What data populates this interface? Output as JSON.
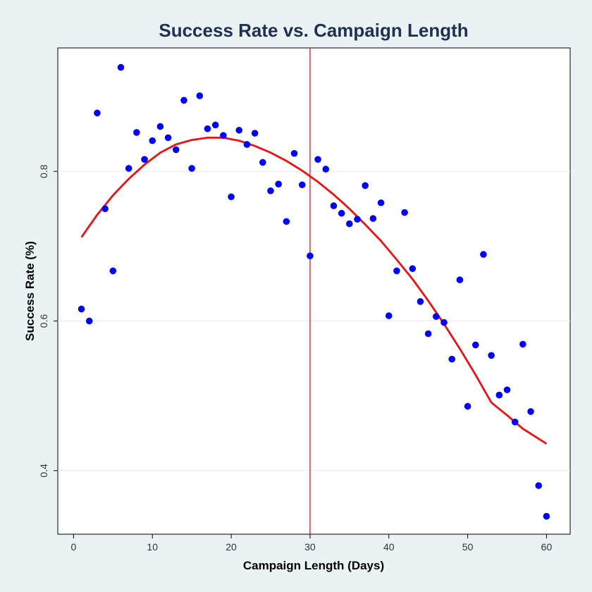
{
  "colors": {
    "background": "#eaf2f3",
    "title": "#1f3050",
    "points": "#0000ff",
    "fit_line": "#ee1111",
    "vline": "#cc1111",
    "grid": "#e8ecee"
  },
  "chart_data": {
    "type": "scatter",
    "title": "Success Rate vs. Campaign Length",
    "xlabel": "Campaign Length (Days)",
    "ylabel": "Success Rate (%)",
    "xlim": [
      -2,
      63
    ],
    "ylim": [
      0.315,
      0.965
    ],
    "xticks": [
      0,
      10,
      20,
      30,
      40,
      50,
      60
    ],
    "yticks": [
      0.4,
      0.6,
      0.8
    ],
    "ytick_labels": [
      "0.4",
      "0.6",
      "0.8"
    ],
    "grid": true,
    "reference_line_x": 30,
    "points": {
      "x": [
        1,
        2,
        3,
        4,
        5,
        6,
        7,
        8,
        9,
        10,
        11,
        12,
        13,
        14,
        15,
        16,
        17,
        18,
        19,
        20,
        21,
        22,
        23,
        24,
        25,
        26,
        27,
        28,
        29,
        30,
        31,
        32,
        33,
        34,
        35,
        36,
        37,
        38,
        39,
        40,
        41,
        42,
        43,
        44,
        45,
        46,
        47,
        48,
        49,
        50,
        51,
        52,
        53,
        54,
        55,
        56,
        57,
        58,
        59,
        60
      ],
      "y": [
        0.616,
        0.6,
        0.878,
        0.75,
        0.667,
        0.939,
        0.804,
        0.852,
        0.816,
        0.841,
        0.86,
        0.845,
        0.829,
        0.895,
        0.804,
        0.901,
        0.857,
        0.862,
        0.848,
        0.766,
        0.855,
        0.836,
        0.851,
        0.812,
        0.774,
        0.783,
        0.733,
        0.824,
        0.782,
        0.687,
        0.816,
        0.803,
        0.754,
        0.744,
        0.73,
        0.736,
        0.781,
        0.737,
        0.758,
        0.607,
        0.667,
        0.745,
        0.67,
        0.626,
        0.583,
        0.606,
        0.598,
        0.549,
        0.655,
        0.486,
        0.568,
        0.689,
        0.554,
        0.501,
        0.508,
        0.465,
        0.569,
        0.479,
        0.38,
        0.339
      ]
    },
    "fit_line": {
      "x": [
        1,
        3,
        5,
        7,
        9,
        11,
        13,
        15,
        17,
        19,
        21,
        23,
        25,
        27,
        29,
        31,
        33,
        35,
        37,
        39,
        41,
        43,
        45,
        47,
        49,
        51,
        53,
        55,
        57,
        60
      ],
      "y": [
        0.712,
        0.742,
        0.768,
        0.79,
        0.809,
        0.825,
        0.836,
        0.842,
        0.845,
        0.845,
        0.841,
        0.834,
        0.825,
        0.814,
        0.801,
        0.786,
        0.769,
        0.75,
        0.729,
        0.707,
        0.682,
        0.656,
        0.627,
        0.596,
        0.563,
        0.528,
        0.491,
        0.474,
        0.456,
        0.436
      ]
    }
  }
}
